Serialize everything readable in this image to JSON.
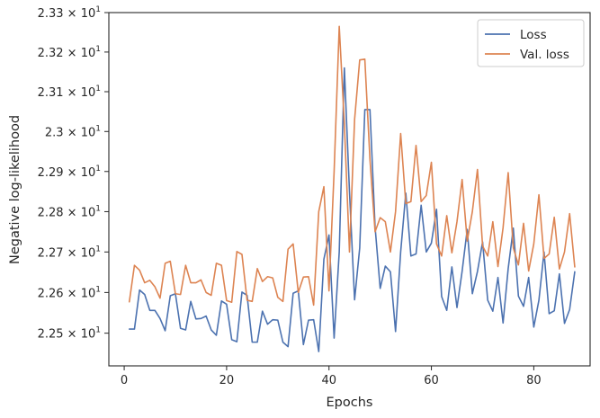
{
  "chart_data": {
    "type": "line",
    "title": "",
    "xlabel": "Epochs",
    "ylabel": "Negative log-likelihood",
    "xlim": [
      -3,
      91
    ],
    "ylim": [
      22.42,
      23.3
    ],
    "y_scale": "log",
    "grid": false,
    "legend_position": "top-right",
    "x_ticks": [
      0,
      20,
      40,
      60,
      80
    ],
    "x_tick_labels": [
      "0",
      "20",
      "40",
      "60",
      "80"
    ],
    "y_ticks": [
      22.5,
      22.6,
      22.7,
      22.8,
      22.9,
      23.0,
      23.1,
      23.2,
      23.3
    ],
    "y_tick_labels": [
      {
        "base": "2.25",
        "exp": "1"
      },
      {
        "base": "2.26",
        "exp": "1"
      },
      {
        "base": "2.27",
        "exp": "1"
      },
      {
        "base": "2.28",
        "exp": "1"
      },
      {
        "base": "2.29",
        "exp": "1"
      },
      {
        "base": "2.3",
        "exp": "1"
      },
      {
        "base": "2.31",
        "exp": "1"
      },
      {
        "base": "2.32",
        "exp": "1"
      },
      {
        "base": "2.33",
        "exp": "1"
      }
    ],
    "x": [
      1,
      2,
      3,
      4,
      5,
      6,
      7,
      8,
      9,
      10,
      11,
      12,
      13,
      14,
      15,
      16,
      17,
      18,
      19,
      20,
      21,
      22,
      23,
      24,
      25,
      26,
      27,
      28,
      29,
      30,
      31,
      32,
      33,
      34,
      35,
      36,
      37,
      38,
      39,
      40,
      41,
      42,
      43,
      44,
      45,
      46,
      47,
      48,
      49,
      50,
      51,
      52,
      53,
      54,
      55,
      56,
      57,
      58,
      59,
      60,
      61,
      62,
      63,
      64,
      65,
      66,
      67,
      68,
      69,
      70,
      71,
      72,
      73,
      74,
      75,
      76,
      77,
      78,
      79,
      80,
      81,
      82,
      83,
      84,
      85,
      86,
      87,
      88
    ],
    "series": [
      {
        "name": "Loss",
        "color": "#4c72b0",
        "values": [
          22.51,
          22.51,
          22.606,
          22.595,
          22.556,
          22.556,
          22.536,
          22.506,
          22.592,
          22.597,
          22.512,
          22.508,
          22.578,
          22.535,
          22.536,
          22.542,
          22.508,
          22.495,
          22.579,
          22.571,
          22.484,
          22.479,
          22.601,
          22.593,
          22.478,
          22.478,
          22.554,
          22.522,
          22.533,
          22.532,
          22.478,
          22.467,
          22.598,
          22.604,
          22.472,
          22.532,
          22.533,
          22.455,
          22.682,
          22.742,
          22.488,
          22.7,
          23.16,
          22.85,
          22.582,
          22.71,
          23.055,
          23.055,
          22.762,
          22.61,
          22.665,
          22.651,
          22.504,
          22.7,
          22.846,
          22.69,
          22.695,
          22.816,
          22.7,
          22.722,
          22.806,
          22.59,
          22.556,
          22.663,
          22.563,
          22.652,
          22.756,
          22.597,
          22.652,
          22.725,
          22.581,
          22.554,
          22.637,
          22.525,
          22.659,
          22.759,
          22.591,
          22.566,
          22.637,
          22.515,
          22.581,
          22.7,
          22.548,
          22.555,
          22.646,
          22.524,
          22.558,
          22.651
        ]
      },
      {
        "name": "Val. loss",
        "color": "#dd8452",
        "values": [
          22.577,
          22.667,
          22.655,
          22.624,
          22.63,
          22.614,
          22.586,
          22.672,
          22.677,
          22.597,
          22.595,
          22.667,
          22.624,
          22.624,
          22.631,
          22.6,
          22.593,
          22.672,
          22.667,
          22.58,
          22.576,
          22.701,
          22.694,
          22.581,
          22.578,
          22.659,
          22.627,
          22.639,
          22.636,
          22.588,
          22.578,
          22.707,
          22.72,
          22.6,
          22.638,
          22.639,
          22.569,
          22.8,
          22.862,
          22.604,
          22.9,
          23.265,
          23.02,
          22.7,
          23.03,
          23.18,
          23.182,
          22.93,
          22.75,
          22.785,
          22.775,
          22.7,
          22.8,
          22.995,
          22.82,
          22.825,
          22.965,
          22.825,
          22.84,
          22.923,
          22.72,
          22.69,
          22.79,
          22.698,
          22.775,
          22.88,
          22.727,
          22.8,
          22.905,
          22.715,
          22.69,
          22.775,
          22.664,
          22.76,
          22.897,
          22.71,
          22.668,
          22.771,
          22.653,
          22.72,
          22.842,
          22.684,
          22.695,
          22.786,
          22.658,
          22.7,
          22.795,
          22.663
        ]
      }
    ]
  }
}
